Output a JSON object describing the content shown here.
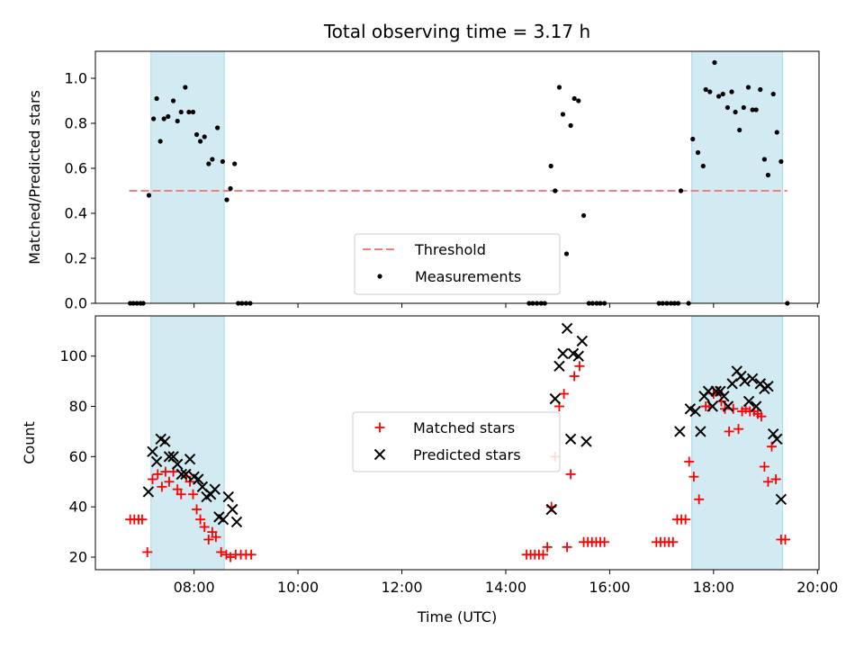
{
  "chart_data": {
    "type": "scatter",
    "title": "Total observing time = 3.17 h",
    "xlabel": "Time (UTC)",
    "xlim_hours": [
      6.1,
      20.03
    ],
    "x_tick_labels": [
      "08:00",
      "10:00",
      "12:00",
      "14:00",
      "16:00",
      "18:00",
      "20:00"
    ],
    "x_tick_hours": [
      8,
      10,
      12,
      14,
      16,
      18,
      20
    ],
    "shaded_intervals_hours": [
      [
        7.17,
        8.58
      ],
      [
        17.58,
        19.33
      ]
    ],
    "shade_color": "#add8e6",
    "top": {
      "ylabel": "Matched/Predicted stars",
      "ylim": [
        0,
        1.12
      ],
      "y_ticks": [
        0.0,
        0.2,
        0.4,
        0.6,
        0.8,
        1.0
      ],
      "y_tick_labels": [
        "0.0",
        "0.2",
        "0.4",
        "0.6",
        "0.8",
        "1.0"
      ],
      "threshold": {
        "name": "Threshold",
        "value": 0.5,
        "x_range": [
          6.75,
          19.42
        ],
        "color": "#f08080"
      },
      "measurements": {
        "name": "Measurements",
        "color": "#000000",
        "points": [
          [
            6.77,
            0
          ],
          [
            6.83,
            0
          ],
          [
            6.9,
            0
          ],
          [
            6.97,
            0
          ],
          [
            7.02,
            0
          ],
          [
            7.13,
            0.48
          ],
          [
            7.22,
            0.82
          ],
          [
            7.28,
            0.91
          ],
          [
            7.35,
            0.72
          ],
          [
            7.42,
            0.82
          ],
          [
            7.5,
            0.83
          ],
          [
            7.6,
            0.9
          ],
          [
            7.68,
            0.81
          ],
          [
            7.75,
            0.85
          ],
          [
            7.83,
            0.96
          ],
          [
            7.9,
            0.85
          ],
          [
            7.98,
            0.85
          ],
          [
            8.05,
            0.75
          ],
          [
            8.12,
            0.72
          ],
          [
            8.2,
            0.74
          ],
          [
            8.28,
            0.62
          ],
          [
            8.35,
            0.64
          ],
          [
            8.45,
            0.78
          ],
          [
            8.55,
            0.63
          ],
          [
            8.63,
            0.46
          ],
          [
            8.7,
            0.51
          ],
          [
            8.78,
            0.62
          ],
          [
            8.85,
            0
          ],
          [
            8.92,
            0
          ],
          [
            9.0,
            0
          ],
          [
            9.08,
            0
          ],
          [
            14.45,
            0
          ],
          [
            14.52,
            0
          ],
          [
            14.6,
            0
          ],
          [
            14.68,
            0
          ],
          [
            14.75,
            0
          ],
          [
            14.87,
            0.61
          ],
          [
            14.95,
            0.5
          ],
          [
            15.03,
            0.96
          ],
          [
            15.1,
            0.84
          ],
          [
            15.17,
            0.22
          ],
          [
            15.25,
            0.79
          ],
          [
            15.32,
            0.91
          ],
          [
            15.4,
            0.9
          ],
          [
            15.5,
            0.39
          ],
          [
            15.6,
            0
          ],
          [
            15.67,
            0
          ],
          [
            15.75,
            0
          ],
          [
            15.82,
            0
          ],
          [
            15.9,
            0
          ],
          [
            16.95,
            0
          ],
          [
            17.02,
            0
          ],
          [
            17.1,
            0
          ],
          [
            17.18,
            0
          ],
          [
            17.25,
            0
          ],
          [
            17.32,
            0
          ],
          [
            17.37,
            0.5
          ],
          [
            17.52,
            0
          ],
          [
            17.6,
            0.73
          ],
          [
            17.7,
            0.67
          ],
          [
            17.8,
            0.61
          ],
          [
            17.85,
            0.95
          ],
          [
            17.93,
            0.94
          ],
          [
            18.02,
            1.07
          ],
          [
            18.1,
            0.92
          ],
          [
            18.18,
            0.93
          ],
          [
            18.27,
            0.87
          ],
          [
            18.35,
            0.94
          ],
          [
            18.42,
            0.85
          ],
          [
            18.5,
            0.77
          ],
          [
            18.58,
            0.87
          ],
          [
            18.67,
            0.96
          ],
          [
            18.75,
            0.86
          ],
          [
            18.82,
            0.86
          ],
          [
            18.9,
            0.95
          ],
          [
            18.98,
            0.64
          ],
          [
            19.05,
            0.57
          ],
          [
            19.15,
            0.93
          ],
          [
            19.22,
            0.76
          ],
          [
            19.3,
            0.63
          ],
          [
            19.42,
            0
          ]
        ]
      },
      "legend": {
        "position": "lower-center",
        "entries": [
          "Threshold",
          "Measurements"
        ]
      }
    },
    "bottom": {
      "ylabel": "Count",
      "ylim": [
        15,
        116
      ],
      "y_ticks": [
        20,
        40,
        60,
        80,
        100
      ],
      "y_tick_labels": [
        "20",
        "40",
        "60",
        "80",
        "100"
      ],
      "matched": {
        "name": "Matched stars",
        "color": "#ff0000",
        "points": [
          [
            6.77,
            35
          ],
          [
            6.85,
            35
          ],
          [
            6.93,
            35
          ],
          [
            7.0,
            35
          ],
          [
            7.1,
            22
          ],
          [
            7.2,
            51
          ],
          [
            7.3,
            53
          ],
          [
            7.38,
            48
          ],
          [
            7.45,
            54
          ],
          [
            7.52,
            50
          ],
          [
            7.6,
            54
          ],
          [
            7.68,
            47
          ],
          [
            7.75,
            45
          ],
          [
            7.85,
            52
          ],
          [
            7.92,
            50
          ],
          [
            7.98,
            45
          ],
          [
            8.05,
            39
          ],
          [
            8.12,
            35
          ],
          [
            8.2,
            32
          ],
          [
            8.28,
            27
          ],
          [
            8.35,
            30
          ],
          [
            8.42,
            28
          ],
          [
            8.52,
            22
          ],
          [
            8.62,
            21
          ],
          [
            8.7,
            20
          ],
          [
            8.8,
            21
          ],
          [
            8.9,
            21
          ],
          [
            9.0,
            21
          ],
          [
            9.1,
            21
          ],
          [
            14.4,
            21
          ],
          [
            14.48,
            21
          ],
          [
            14.56,
            21
          ],
          [
            14.64,
            21
          ],
          [
            14.72,
            21
          ],
          [
            14.8,
            24
          ],
          [
            14.88,
            40
          ],
          [
            14.95,
            60
          ],
          [
            15.03,
            80
          ],
          [
            15.12,
            85
          ],
          [
            15.18,
            24
          ],
          [
            15.25,
            53
          ],
          [
            15.32,
            92
          ],
          [
            15.42,
            96
          ],
          [
            15.5,
            26
          ],
          [
            15.58,
            26
          ],
          [
            15.66,
            26
          ],
          [
            15.74,
            26
          ],
          [
            15.82,
            26
          ],
          [
            15.9,
            26
          ],
          [
            16.9,
            26
          ],
          [
            16.98,
            26
          ],
          [
            17.06,
            26
          ],
          [
            17.14,
            26
          ],
          [
            17.22,
            26
          ],
          [
            17.3,
            35
          ],
          [
            17.38,
            35
          ],
          [
            17.46,
            35
          ],
          [
            17.53,
            58
          ],
          [
            17.62,
            52
          ],
          [
            17.72,
            43
          ],
          [
            17.85,
            80
          ],
          [
            17.92,
            80
          ],
          [
            18.0,
            85
          ],
          [
            18.08,
            86
          ],
          [
            18.15,
            82
          ],
          [
            18.22,
            79
          ],
          [
            18.3,
            70
          ],
          [
            18.38,
            79
          ],
          [
            18.48,
            71
          ],
          [
            18.55,
            78
          ],
          [
            18.62,
            79
          ],
          [
            18.7,
            78
          ],
          [
            18.78,
            78
          ],
          [
            18.85,
            77
          ],
          [
            18.92,
            76
          ],
          [
            18.98,
            56
          ],
          [
            19.05,
            50
          ],
          [
            19.12,
            64
          ],
          [
            19.2,
            51
          ],
          [
            19.3,
            27
          ],
          [
            19.38,
            27
          ]
        ]
      },
      "predicted": {
        "name": "Predicted stars",
        "color": "#000000",
        "points": [
          [
            7.12,
            46
          ],
          [
            7.2,
            62
          ],
          [
            7.28,
            58
          ],
          [
            7.36,
            67
          ],
          [
            7.44,
            66
          ],
          [
            7.52,
            60
          ],
          [
            7.6,
            60
          ],
          [
            7.68,
            57
          ],
          [
            7.76,
            53
          ],
          [
            7.84,
            53
          ],
          [
            7.92,
            59
          ],
          [
            8.0,
            52
          ],
          [
            8.08,
            51
          ],
          [
            8.16,
            48
          ],
          [
            8.24,
            44
          ],
          [
            8.32,
            45
          ],
          [
            8.4,
            47
          ],
          [
            8.48,
            36
          ],
          [
            8.56,
            35
          ],
          [
            8.66,
            44
          ],
          [
            8.74,
            39
          ],
          [
            8.82,
            34
          ],
          [
            14.88,
            39
          ],
          [
            14.95,
            83
          ],
          [
            15.03,
            96
          ],
          [
            15.1,
            101
          ],
          [
            15.18,
            111
          ],
          [
            15.25,
            67
          ],
          [
            15.3,
            101
          ],
          [
            15.4,
            100
          ],
          [
            15.47,
            106
          ],
          [
            15.55,
            66
          ],
          [
            17.35,
            70
          ],
          [
            17.55,
            79
          ],
          [
            17.65,
            78
          ],
          [
            17.75,
            70
          ],
          [
            17.82,
            84
          ],
          [
            17.9,
            86
          ],
          [
            17.98,
            80
          ],
          [
            18.05,
            86
          ],
          [
            18.13,
            86
          ],
          [
            18.2,
            84
          ],
          [
            18.28,
            80
          ],
          [
            18.36,
            89
          ],
          [
            18.45,
            94
          ],
          [
            18.53,
            92
          ],
          [
            18.6,
            90
          ],
          [
            18.68,
            82
          ],
          [
            18.75,
            91
          ],
          [
            18.82,
            80
          ],
          [
            18.9,
            89
          ],
          [
            18.98,
            87
          ],
          [
            19.05,
            88
          ],
          [
            19.15,
            69
          ],
          [
            19.22,
            67
          ],
          [
            19.3,
            43
          ]
        ]
      },
      "legend": {
        "position": "center",
        "entries": [
          "Matched stars",
          "Predicted stars"
        ]
      }
    }
  }
}
